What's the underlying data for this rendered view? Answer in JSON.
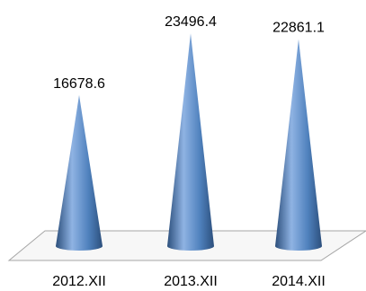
{
  "chart_data": {
    "type": "bar",
    "shape": "cone",
    "categories": [
      "2012.XII",
      "2013.XII",
      "2014.XII"
    ],
    "values": [
      16678.6,
      23496.4,
      22861.1
    ],
    "data_labels": [
      "16678.6",
      "23496.4",
      "22861.1"
    ],
    "title": "",
    "xlabel": "",
    "ylabel": "",
    "ylim": [
      0,
      25000
    ],
    "grid": false,
    "legend": "none",
    "colors": {
      "cone_light": "#8fb3e3",
      "cone_mid": "#4f81bd",
      "cone_dark": "#2c4f7c",
      "floor_fill": "#f7f7f7",
      "floor_stroke": "#a6a6a6"
    }
  }
}
